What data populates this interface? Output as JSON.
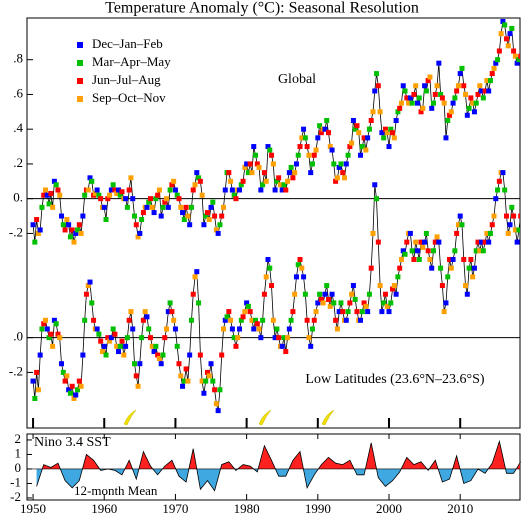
{
  "chart_data": [
    {
      "type": "line",
      "title": "Temperature Anomaly (°C): Seasonal Resolution",
      "seasons": [
        {
          "name": "Dec–Jan–Feb",
          "color": "#0000ff"
        },
        {
          "name": "Mar–Apr–May",
          "color": "#00c000"
        },
        {
          "name": "Jun–Jul–Aug",
          "color": "#ff0000"
        },
        {
          "name": "Sep–Oct–Nov",
          "color": "#ffa000"
        }
      ],
      "x": [
        1950,
        1951,
        1952,
        1953,
        1954,
        1955,
        1956,
        1957,
        1958,
        1959,
        1960,
        1961,
        1962,
        1963,
        1964,
        1965,
        1966,
        1967,
        1968,
        1969,
        1970,
        1971,
        1972,
        1973,
        1974,
        1975,
        1976,
        1977,
        1978,
        1979,
        1980,
        1981,
        1982,
        1983,
        1984,
        1985,
        1986,
        1987,
        1988,
        1989,
        1990,
        1991,
        1992,
        1993,
        1994,
        1995,
        1996,
        1997,
        1998,
        1999,
        2000,
        2001,
        2002,
        2003,
        2004,
        2005,
        2006,
        2007,
        2008,
        2009,
        2010,
        2011,
        2012,
        2013,
        2014,
        2015,
        2016,
        2017,
        2018
      ],
      "series": [
        {
          "name": "Global",
          "values": [
            [
              -0.15,
              -0.25,
              -0.12,
              -0.2
            ],
            [
              -0.18,
              -0.05,
              0.02,
              0.05
            ],
            [
              0.02,
              -0.03,
              0.03,
              -0.05
            ],
            [
              0.1,
              0.08,
              0.05,
              0.02
            ],
            [
              -0.1,
              -0.15,
              -0.18,
              -0.12
            ],
            [
              -0.15,
              -0.22,
              -0.18,
              -0.25
            ],
            [
              -0.2,
              -0.18,
              -0.15,
              -0.2
            ],
            [
              -0.1,
              0.02,
              0.05,
              0.05
            ],
            [
              0.12,
              0.1,
              0.02,
              0.03
            ],
            [
              0.05,
              0.02,
              0.0,
              -0.05
            ],
            [
              -0.05,
              -0.12,
              0.0,
              0.02
            ],
            [
              0.05,
              0.08,
              0.05,
              0.03
            ],
            [
              0.05,
              0.02,
              0.04,
              0.0
            ],
            [
              0.0,
              -0.05,
              0.05,
              0.12
            ],
            [
              0.0,
              -0.1,
              -0.15,
              -0.22
            ],
            [
              -0.2,
              -0.12,
              -0.08,
              -0.05
            ],
            [
              -0.05,
              -0.02,
              0.0,
              -0.05
            ],
            [
              -0.08,
              0.0,
              0.02,
              0.05
            ],
            [
              -0.1,
              -0.05,
              -0.02,
              0.0
            ],
            [
              -0.05,
              0.05,
              0.08,
              0.1
            ],
            [
              0.05,
              0.02,
              0.0,
              -0.05
            ],
            [
              -0.08,
              -0.12,
              -0.05,
              -0.1
            ],
            [
              -0.15,
              -0.05,
              0.05,
              0.08
            ],
            [
              0.15,
              0.12,
              0.1,
              0.02
            ],
            [
              -0.15,
              -0.1,
              -0.08,
              -0.12
            ],
            [
              -0.05,
              -0.02,
              -0.1,
              -0.18
            ],
            [
              -0.2,
              -0.15,
              -0.1,
              -0.05
            ],
            [
              0.05,
              0.15,
              0.15,
              0.1
            ],
            [
              0.05,
              0.02,
              0.0,
              0.05
            ],
            [
              0.05,
              0.08,
              0.1,
              0.18
            ],
            [
              0.2,
              0.15,
              0.2,
              0.15
            ],
            [
              0.3,
              0.25,
              0.2,
              0.18
            ],
            [
              0.05,
              0.08,
              0.15,
              0.1
            ],
            [
              0.3,
              0.28,
              0.25,
              0.2
            ],
            [
              0.05,
              0.1,
              0.12,
              0.08
            ],
            [
              0.05,
              0.08,
              0.05,
              0.1
            ],
            [
              0.15,
              0.18,
              0.12,
              0.15
            ],
            [
              0.2,
              0.25,
              0.3,
              0.35
            ],
            [
              0.4,
              0.35,
              0.3,
              0.25
            ],
            [
              0.15,
              0.2,
              0.25,
              0.28
            ],
            [
              0.35,
              0.42,
              0.38,
              0.4
            ],
            [
              0.4,
              0.45,
              0.38,
              0.3
            ],
            [
              0.28,
              0.2,
              0.1,
              0.12
            ],
            [
              0.18,
              0.2,
              0.15,
              0.12
            ],
            [
              0.2,
              0.25,
              0.3,
              0.32
            ],
            [
              0.45,
              0.4,
              0.42,
              0.38
            ],
            [
              0.25,
              0.3,
              0.35,
              0.28
            ],
            [
              0.35,
              0.4,
              0.45,
              0.5
            ],
            [
              0.62,
              0.72,
              0.65,
              0.5
            ],
            [
              0.38,
              0.35,
              0.4,
              0.38
            ],
            [
              0.3,
              0.4,
              0.38,
              0.35
            ],
            [
              0.45,
              0.5,
              0.52,
              0.55
            ],
            [
              0.65,
              0.62,
              0.58,
              0.55
            ],
            [
              0.58,
              0.55,
              0.6,
              0.65
            ],
            [
              0.55,
              0.58,
              0.5,
              0.52
            ],
            [
              0.65,
              0.62,
              0.68,
              0.7
            ],
            [
              0.52,
              0.55,
              0.6,
              0.65
            ],
            [
              0.78,
              0.6,
              0.58,
              0.55
            ],
            [
              0.35,
              0.45,
              0.48,
              0.5
            ],
            [
              0.55,
              0.58,
              0.62,
              0.65
            ],
            [
              0.72,
              0.75,
              0.65,
              0.6
            ],
            [
              0.48,
              0.52,
              0.58,
              0.55
            ],
            [
              0.5,
              0.55,
              0.6,
              0.65
            ],
            [
              0.62,
              0.58,
              0.62,
              0.68
            ],
            [
              0.62,
              0.68,
              0.72,
              0.75
            ],
            [
              0.78,
              0.8,
              0.85,
              0.95
            ],
            [
              1.02,
              1.0,
              0.92,
              0.88
            ],
            [
              0.95,
              0.98,
              0.85,
              0.82
            ],
            [
              0.78,
              0.8,
              0.82,
              0.88
            ]
          ]
        },
        {
          "name": "Low Latitudes (23.6°N–23.6°S)",
          "axis": "y2",
          "values": [
            [
              -0.25,
              -0.35,
              -0.2,
              -0.3
            ],
            [
              -0.1,
              0.05,
              0.08,
              0.1
            ],
            [
              0.05,
              0.0,
              0.02,
              -0.05
            ],
            [
              0.1,
              0.08,
              0.02,
              0.0
            ],
            [
              -0.15,
              -0.2,
              -0.25,
              -0.22
            ],
            [
              -0.3,
              -0.32,
              -0.28,
              -0.35
            ],
            [
              -0.33,
              -0.3,
              -0.25,
              -0.28
            ],
            [
              -0.1,
              0.1,
              0.25,
              0.3
            ],
            [
              0.32,
              0.2,
              0.1,
              0.05
            ],
            [
              0.05,
              0.02,
              -0.02,
              -0.08
            ],
            [
              -0.05,
              -0.1,
              0.0,
              -0.02
            ],
            [
              0.0,
              0.05,
              0.02,
              -0.05
            ],
            [
              -0.08,
              -0.05,
              -0.02,
              -0.1
            ],
            [
              -0.05,
              0.0,
              0.1,
              0.15
            ],
            [
              0.05,
              -0.15,
              -0.22,
              -0.28
            ],
            [
              -0.15,
              0.0,
              0.1,
              0.15
            ],
            [
              0.12,
              0.05,
              0.0,
              -0.05
            ],
            [
              -0.08,
              -0.05,
              -0.1,
              -0.12
            ],
            [
              -0.15,
              -0.1,
              0.0,
              0.05
            ],
            [
              0.15,
              0.2,
              0.15,
              0.1
            ],
            [
              0.05,
              -0.05,
              -0.15,
              -0.22
            ],
            [
              -0.28,
              -0.25,
              -0.18,
              -0.25
            ],
            [
              -0.1,
              0.1,
              0.25,
              0.35
            ],
            [
              0.38,
              0.2,
              -0.1,
              -0.25
            ],
            [
              -0.32,
              -0.25,
              -0.2,
              -0.22
            ],
            [
              -0.15,
              -0.25,
              -0.3,
              -0.38
            ],
            [
              -0.42,
              -0.3,
              -0.1,
              0.05
            ],
            [
              0.1,
              0.12,
              0.15,
              0.1
            ],
            [
              0.05,
              0.0,
              -0.05,
              0.0
            ],
            [
              0.05,
              0.1,
              0.12,
              0.15
            ],
            [
              0.2,
              0.18,
              0.15,
              0.1
            ],
            [
              0.05,
              0.1,
              0.08,
              0.05
            ],
            [
              0.0,
              0.1,
              0.25,
              0.35
            ],
            [
              0.45,
              0.4,
              0.3,
              0.1
            ],
            [
              0.0,
              0.05,
              0.0,
              -0.05
            ],
            [
              -0.05,
              0.0,
              -0.08,
              0.0
            ],
            [
              0.05,
              0.1,
              0.15,
              0.25
            ],
            [
              0.35,
              0.42,
              0.45,
              0.4
            ],
            [
              0.35,
              0.25,
              0.1,
              0.0
            ],
            [
              -0.05,
              0.05,
              0.1,
              0.15
            ],
            [
              0.2,
              0.25,
              0.22,
              0.2
            ],
            [
              0.25,
              0.3,
              0.22,
              0.18
            ],
            [
              0.25,
              0.2,
              0.1,
              0.05
            ],
            [
              0.15,
              0.2,
              0.15,
              0.1
            ],
            [
              0.1,
              0.15,
              0.2,
              0.25
            ],
            [
              0.3,
              0.22,
              0.15,
              0.1
            ],
            [
              0.1,
              0.15,
              0.2,
              0.18
            ],
            [
              0.15,
              0.25,
              0.4,
              0.6
            ],
            [
              0.88,
              0.8,
              0.55,
              0.3
            ],
            [
              0.15,
              0.2,
              0.25,
              0.18
            ],
            [
              0.15,
              0.2,
              0.28,
              0.3
            ],
            [
              0.25,
              0.35,
              0.4,
              0.45
            ],
            [
              0.5,
              0.48,
              0.55,
              0.6
            ],
            [
              0.6,
              0.5,
              0.45,
              0.55
            ],
            [
              0.5,
              0.45,
              0.55,
              0.52
            ],
            [
              0.55,
              0.6,
              0.5,
              0.45
            ],
            [
              0.4,
              0.5,
              0.55,
              0.58
            ],
            [
              0.55,
              0.4,
              0.3,
              0.15
            ],
            [
              0.2,
              0.35,
              0.45,
              0.4
            ],
            [
              0.45,
              0.5,
              0.6,
              0.65
            ],
            [
              0.7,
              0.65,
              0.45,
              0.3
            ],
            [
              0.25,
              0.4,
              0.45,
              0.35
            ],
            [
              0.4,
              0.5,
              0.55,
              0.5
            ],
            [
              0.55,
              0.5,
              0.55,
              0.6
            ],
            [
              0.55,
              0.6,
              0.65,
              0.7
            ],
            [
              0.8,
              0.85,
              0.9,
              0.95
            ],
            [
              0.95,
              0.85,
              0.7,
              0.6
            ],
            [
              0.65,
              0.75,
              0.7,
              0.62
            ],
            [
              0.55,
              0.62,
              0.7,
              0.78
            ]
          ]
        }
      ],
      "xlim": [
        1949.15,
        2018.4
      ],
      "xticks": [
        1950,
        1960,
        1970,
        1980,
        1990,
        2000,
        2010
      ],
      "ylim": [
        -1.32,
        1.04
      ],
      "yticks": [
        {
          "value": 0.8,
          "label": ".8"
        },
        {
          "value": 0.6,
          "label": ".6"
        },
        {
          "value": 0.4,
          "label": ".4"
        },
        {
          "value": 0.2,
          "label": ".2"
        },
        {
          "value": 0,
          "label": "0."
        },
        {
          "value": -0.2,
          "label": "-.2"
        }
      ],
      "y2lim": [
        -0.52,
        1.84
      ],
      "y2ticks": [
        {
          "value": 0,
          "label": ".0"
        },
        {
          "value": -0.2,
          "label": "-.2"
        }
      ]
    },
    {
      "type": "area",
      "title": "Nino 3.4 SST",
      "subtitle": "12-month Mean",
      "x": [
        1950,
        1951,
        1952,
        1953,
        1954,
        1955,
        1956,
        1957,
        1958,
        1959,
        1960,
        1961,
        1962,
        1963,
        1964,
        1965,
        1966,
        1967,
        1968,
        1969,
        1970,
        1971,
        1972,
        1973,
        1974,
        1975,
        1976,
        1977,
        1978,
        1979,
        1980,
        1981,
        1982,
        1983,
        1984,
        1985,
        1986,
        1987,
        1988,
        1989,
        1990,
        1991,
        1992,
        1993,
        1994,
        1995,
        1996,
        1997,
        1998,
        1999,
        2000,
        2001,
        2002,
        2003,
        2004,
        2005,
        2006,
        2007,
        2008,
        2009,
        2010,
        2011,
        2012,
        2013,
        2014,
        2015,
        2016,
        2017,
        2018
      ],
      "values": [
        -1.2,
        0.3,
        0.1,
        0.4,
        -0.8,
        -1.3,
        -0.8,
        1.0,
        0.6,
        -0.1,
        0.0,
        -0.1,
        -0.4,
        0.6,
        -0.7,
        1.2,
        0.2,
        -0.4,
        0.2,
        0.6,
        -0.5,
        -0.9,
        1.4,
        -1.4,
        -0.8,
        -1.5,
        0.3,
        0.5,
        -0.1,
        0.3,
        0.2,
        -0.2,
        1.6,
        0.6,
        -0.5,
        -0.5,
        0.6,
        1.2,
        -1.3,
        -0.4,
        0.3,
        0.8,
        0.4,
        0.3,
        0.6,
        -0.4,
        -0.4,
        1.8,
        -0.6,
        -1.2,
        -0.8,
        -0.2,
        0.8,
        0.3,
        0.5,
        -0.1,
        0.6,
        -0.9,
        -0.7,
        0.9,
        -1.0,
        -0.8,
        0.0,
        -0.3,
        0.4,
        1.9,
        -0.3,
        -0.3,
        0.5
      ],
      "colors": {
        "positive": "#ff2020",
        "negative": "#40a8e0"
      },
      "ylim": [
        -2.14,
        2.41
      ],
      "yticks": [
        2,
        1,
        0,
        -1,
        -2
      ]
    }
  ]
}
